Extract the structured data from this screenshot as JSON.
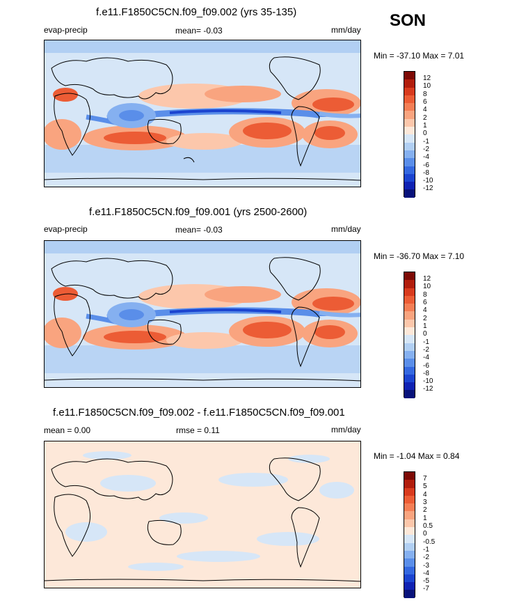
{
  "season": "SON",
  "panels": [
    {
      "title": "f.e11.F1850C5CN.f09_f09.002 (yrs 35-135)",
      "left_label": "evap-precip",
      "center_label": "mean=  -0.03",
      "right_label": "mm/day",
      "minmax": "Min = -37.10 Max =   7.01",
      "labels": [
        "12",
        "10",
        "8",
        "6",
        "4",
        "2",
        "1",
        "0",
        "-1",
        "-2",
        "-4",
        "-6",
        "-8",
        "-10",
        "-12"
      ]
    },
    {
      "title": "f.e11.F1850C5CN.f09_f09.001 (yrs 2500-2600)",
      "left_label": "evap-precip",
      "center_label": "mean=  -0.03",
      "right_label": "mm/day",
      "minmax": "Min = -36.70 Max =   7.10",
      "labels": [
        "12",
        "10",
        "8",
        "6",
        "4",
        "2",
        "1",
        "0",
        "-1",
        "-2",
        "-4",
        "-6",
        "-8",
        "-10",
        "-12"
      ]
    },
    {
      "title": "f.e11.F1850C5CN.f09_f09.002 - f.e11.F1850C5CN.f09_f09.001",
      "left_label": "mean =   0.00",
      "center_label": "rmse =   0.11",
      "right_label": "mm/day",
      "minmax": "Min =  -1.04 Max =   0.84",
      "labels": [
        "7",
        "5",
        "4",
        "3",
        "2",
        "1",
        "0.5",
        "0",
        "-0.5",
        "-1",
        "-2",
        "-3",
        "-4",
        "-5",
        "-7"
      ]
    }
  ],
  "colors": [
    "#7d0a05",
    "#b11d0c",
    "#d83a1d",
    "#ec5c35",
    "#f47e55",
    "#f9a47f",
    "#fcc7ab",
    "#fde8d9",
    "#d6e6f7",
    "#b1cff3",
    "#85b0f0",
    "#5a8ee9",
    "#3468e0",
    "#1b44d0",
    "#0f22b3",
    "#08127a"
  ]
}
